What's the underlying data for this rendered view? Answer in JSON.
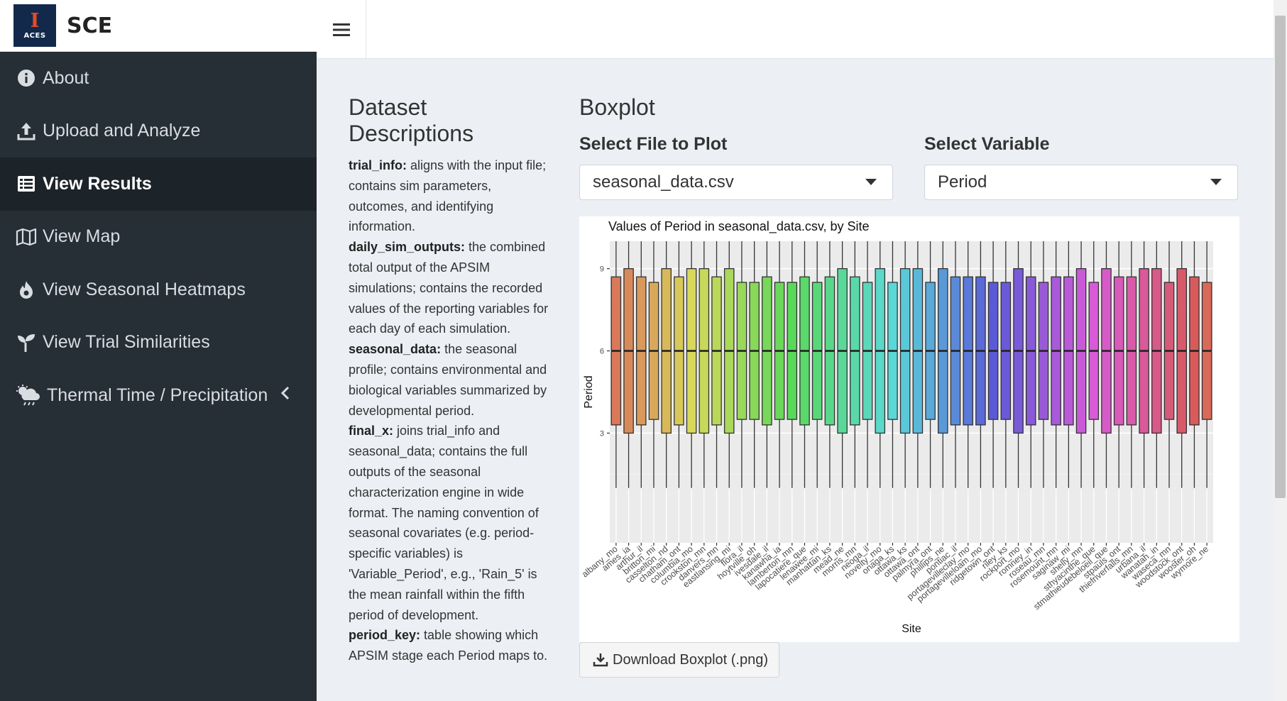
{
  "brand": {
    "logo_text": "ACES",
    "title": "SCE"
  },
  "topbar": {
    "menu_icon": "hamburger-icon"
  },
  "sidebar": {
    "items": [
      {
        "label": "About",
        "icon": "info-circle-icon",
        "active": false
      },
      {
        "label": "Upload and Analyze",
        "icon": "upload-icon",
        "active": false
      },
      {
        "label": "View Results",
        "icon": "table-list-icon",
        "active": true
      },
      {
        "label": "View Map",
        "icon": "map-icon",
        "active": false
      },
      {
        "label": "View Seasonal Heatmaps",
        "icon": "fire-icon",
        "active": false
      },
      {
        "label": "View Trial Similarities",
        "icon": "seedling-icon",
        "active": false
      },
      {
        "label": "Thermal Time / Precipitation",
        "icon": "cloud-sun-rain-icon",
        "active": false,
        "has_chevron": true
      }
    ]
  },
  "descriptions": {
    "title": "Dataset Descriptions",
    "items": [
      {
        "key": "trial_info:",
        "text": " aligns with the input file; contains sim parameters, outcomes, and identifying information."
      },
      {
        "key": "daily_sim_outputs:",
        "text": " the combined total output of the APSIM simulations; contains the recorded values of the reporting variables for each day of each simulation."
      },
      {
        "key": "seasonal_data:",
        "text": " the seasonal profile; contains environmental and biological variables summarized by developmental period."
      },
      {
        "key": "final_x:",
        "text": " joins trial_info and seasonal_data; contains the full outputs of the seasonal characterization engine in wide format. The naming convention of seasonal covariates (e.g. period-specific variables) is 'Variable_Period', e.g., 'Rain_5' is the mean rainfall within the fifth period of development."
      },
      {
        "key": "period_key:",
        "text": " table showing which APSIM stage each Period maps to."
      }
    ]
  },
  "boxplot": {
    "title": "Boxplot",
    "file_label": "Select File to Plot",
    "file_value": "seasonal_data.csv",
    "var_label": "Select Variable",
    "var_value": "Period",
    "download_label": "Download Boxplot (.png)"
  },
  "chart_data": {
    "type": "boxplot",
    "title": "Values of Period in seasonal_data.csv, by Site",
    "xlabel": "Site",
    "ylabel": "Period",
    "ylim": [
      -1,
      10
    ],
    "yticks": [
      3,
      6,
      9
    ],
    "grid": true,
    "legend": "none",
    "categories": [
      "albany_mo",
      "ames_ia",
      "arthur_il",
      "britton_mi",
      "casselton_nd",
      "chatham_ont",
      "columbia_mo",
      "crookston_mn",
      "danvers_mn",
      "eastlansing_mi",
      "flora_il",
      "hoytville_oh",
      "ivesdale_il",
      "kanawha_ia",
      "lamberton_mn",
      "lapocatiere_que",
      "lenawee_mi",
      "manhattan_ks",
      "mead_ne",
      "morris_mn",
      "neoga_il",
      "novelty_mo",
      "onaga_ks",
      "ottawa_ks",
      "ottawa_ont",
      "palmyra_ont",
      "phillips_ne",
      "pontiac_il",
      "portagevilleclay_mo",
      "portagevilleloam_mo",
      "ridgetown_ont",
      "riley_ks",
      "rockport_mo",
      "romney_in",
      "roseau_mn",
      "rosemount_mn",
      "saginaw_mi",
      "shelly_mn",
      "sthyacinthe_que",
      "stmathieudebeloeil_que",
      "stpauls_ont",
      "thiefriverfalls_mn",
      "urbana_il",
      "wanatah_in",
      "waseca_mn",
      "woodstock_ont",
      "wooster_oh",
      "wymore_ne"
    ],
    "q1": [
      3.3,
      3.0,
      3.3,
      3.5,
      3.0,
      3.3,
      3.0,
      3.0,
      3.3,
      3.0,
      3.5,
      3.5,
      3.3,
      3.5,
      3.5,
      3.3,
      3.5,
      3.3,
      3.0,
      3.3,
      3.5,
      3.0,
      3.5,
      3.0,
      3.0,
      3.5,
      3.0,
      3.3,
      3.3,
      3.3,
      3.5,
      3.5,
      3.0,
      3.3,
      3.5,
      3.3,
      3.3,
      3.0,
      3.5,
      3.0,
      3.3,
      3.3,
      3.0,
      3.0,
      3.5,
      3.0,
      3.3,
      3.5
    ],
    "median": [
      6,
      6,
      6,
      6,
      6,
      6,
      6,
      6,
      6,
      6,
      6,
      6,
      6,
      6,
      6,
      6,
      6,
      6,
      6,
      6,
      6,
      6,
      6,
      6,
      6,
      6,
      6,
      6,
      6,
      6,
      6,
      6,
      6,
      6,
      6,
      6,
      6,
      6,
      6,
      6,
      6,
      6,
      6,
      6,
      6,
      6,
      6,
      6
    ],
    "q3": [
      8.7,
      9.0,
      8.7,
      8.5,
      9.0,
      8.7,
      9.0,
      9.0,
      8.7,
      9.0,
      8.5,
      8.5,
      8.7,
      8.5,
      8.5,
      8.7,
      8.5,
      8.7,
      9.0,
      8.7,
      8.5,
      9.0,
      8.5,
      9.0,
      9.0,
      8.5,
      9.0,
      8.7,
      8.7,
      8.7,
      8.5,
      8.5,
      9.0,
      8.7,
      8.5,
      8.7,
      8.7,
      9.0,
      8.5,
      9.0,
      8.7,
      8.7,
      9.0,
      9.0,
      8.5,
      9.0,
      8.7,
      8.5
    ],
    "whisker_low": 1,
    "whisker_high": 11
  }
}
